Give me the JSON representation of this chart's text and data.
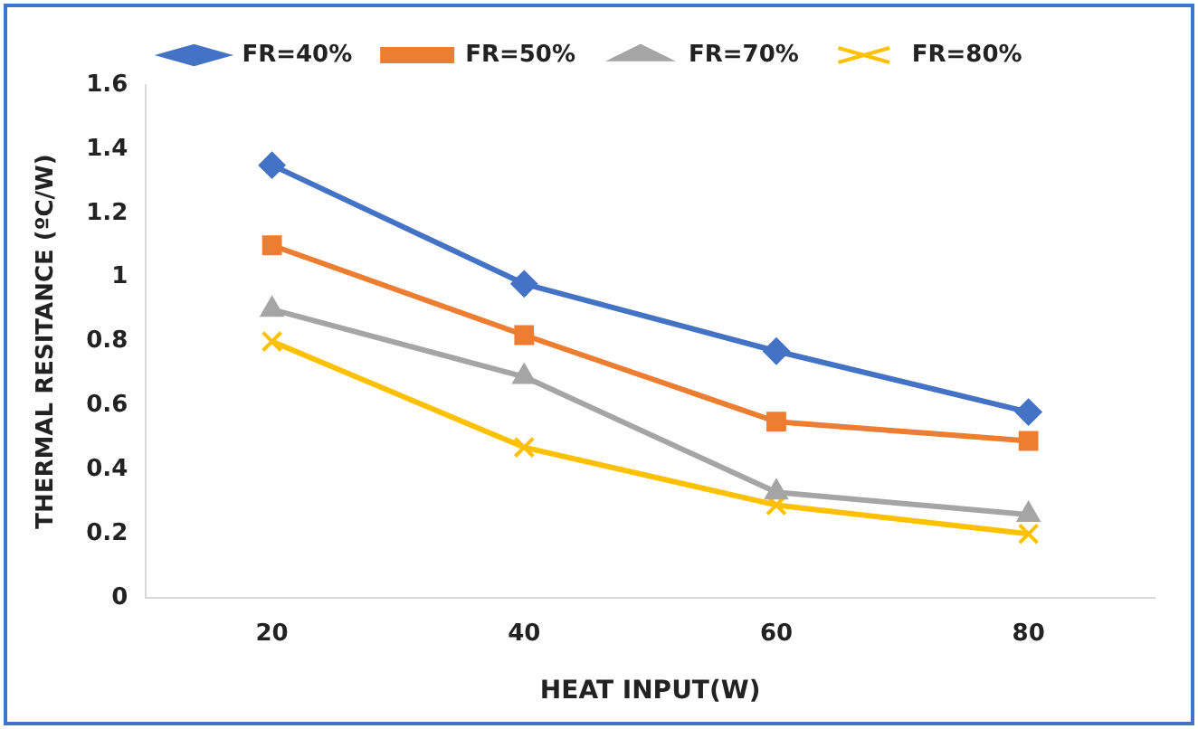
{
  "chart_data": {
    "type": "line",
    "xlabel": "HEAT INPUT(W)",
    "ylabel": "THERMAL RESITANCE (ºC/W)",
    "categories": [
      "20",
      "40",
      "60",
      "80"
    ],
    "series": [
      {
        "name": "FR=40%",
        "color": "#4472c4",
        "marker": "diamond",
        "values": [
          1.35,
          0.98,
          0.77,
          0.58
        ]
      },
      {
        "name": "FR=50%",
        "color": "#ed7d31",
        "marker": "square",
        "values": [
          1.1,
          0.82,
          0.55,
          0.49
        ]
      },
      {
        "name": "FR=70%",
        "color": "#a5a5a5",
        "marker": "triangle",
        "values": [
          0.9,
          0.69,
          0.33,
          0.26
        ]
      },
      {
        "name": "FR=80%",
        "color": "#ffc000",
        "marker": "cross",
        "values": [
          0.8,
          0.47,
          0.29,
          0.2
        ]
      }
    ],
    "ylim": [
      0,
      1.6
    ],
    "yticks": [
      0,
      0.2,
      0.4,
      0.6,
      0.8,
      1,
      1.2,
      1.4,
      1.6
    ],
    "grid": false,
    "legend": "top"
  }
}
